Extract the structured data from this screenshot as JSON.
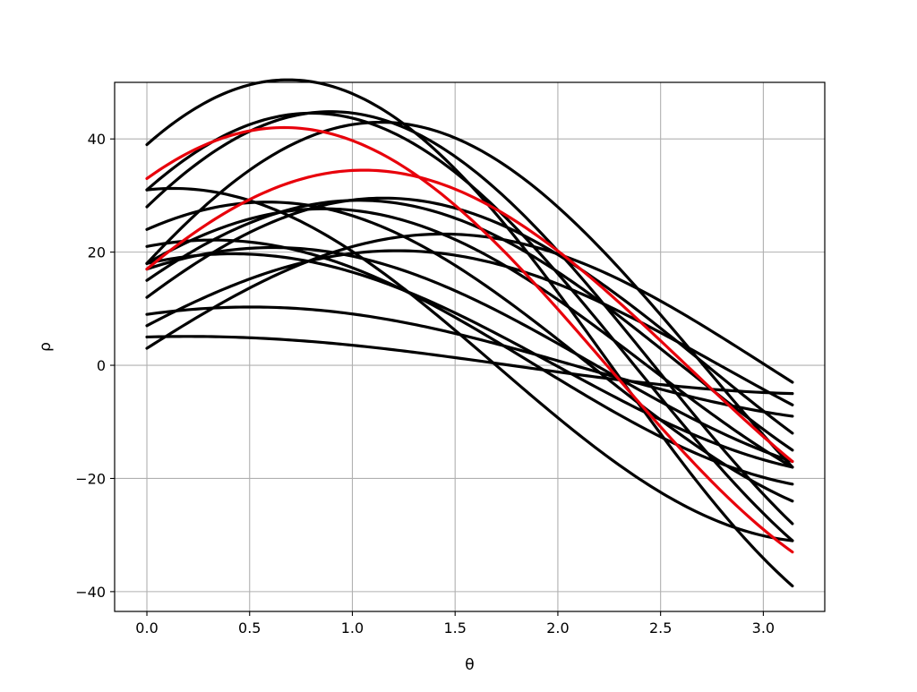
{
  "chart_data": {
    "type": "line",
    "xlabel": "θ",
    "ylabel": "ρ",
    "xlim": [
      -0.157,
      3.299
    ],
    "ylim": [
      -43.5,
      50.0
    ],
    "x_ticks": [
      0.0,
      0.5,
      1.0,
      1.5,
      2.0,
      2.5,
      3.0
    ],
    "x_tick_labels": [
      "0.0",
      "0.5",
      "1.0",
      "1.5",
      "2.0",
      "2.5",
      "3.0"
    ],
    "y_ticks": [
      -40,
      -20,
      0,
      20,
      40
    ],
    "y_tick_labels": [
      "−40",
      "−20",
      "0",
      "20",
      "40"
    ],
    "grid": true,
    "x_range": [
      0,
      3.14159
    ],
    "curve_form": "rho = a*cos(theta) + b*sin(theta)",
    "series": [
      {
        "a": 39,
        "b": 32,
        "color": "#000000"
      },
      {
        "a": 31,
        "b": 32,
        "color": "#000000"
      },
      {
        "a": 28,
        "b": 35,
        "color": "#000000"
      },
      {
        "a": 18,
        "b": 39,
        "color": "#000000"
      },
      {
        "a": 24,
        "b": 16,
        "color": "#000000"
      },
      {
        "a": 21,
        "b": 7,
        "color": "#000000"
      },
      {
        "a": 18,
        "b": 21,
        "color": "#000000"
      },
      {
        "a": 17,
        "b": 12,
        "color": "#000000"
      },
      {
        "a": 15,
        "b": 25,
        "color": "#000000"
      },
      {
        "a": 9,
        "b": 5,
        "color": "#000000"
      },
      {
        "a": 5,
        "b": 1,
        "color": "#000000"
      },
      {
        "a": 3,
        "b": 23,
        "color": "#000000"
      },
      {
        "a": 7,
        "b": 19,
        "color": "#000000"
      },
      {
        "a": 12,
        "b": 27,
        "color": "#000000"
      },
      {
        "a": 31,
        "b": 4,
        "color": "#000000"
      },
      {
        "a": 18,
        "b": 8,
        "color": "#000000"
      },
      {
        "a": 33,
        "b": 26,
        "color": "#e8000b"
      },
      {
        "a": 17,
        "b": 30,
        "color": "#e8000b"
      }
    ]
  }
}
